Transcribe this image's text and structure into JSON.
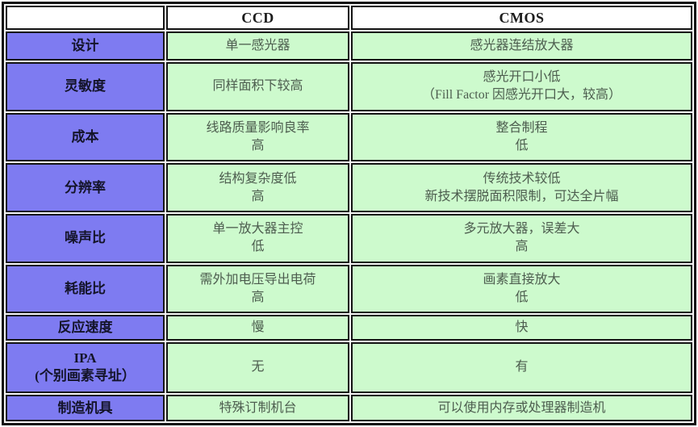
{
  "table": {
    "title_hidden": "",
    "columns": {
      "corner": "",
      "ccd": "CCD",
      "cmos": "CMOS"
    },
    "rows": [
      {
        "label": "设计",
        "ccd": "单一感光器",
        "cmos": "感光器连结放大器"
      },
      {
        "label": "灵敏度",
        "ccd": "同样面积下较高",
        "cmos": "感光开口小低\n（Fill Factor 因感光开口大，较高）"
      },
      {
        "label": "成本",
        "ccd": "线路质量影响良率\n高",
        "cmos": "整合制程\n低"
      },
      {
        "label": "分辨率",
        "ccd": "结构复杂度低\n高",
        "cmos": "传统技术较低\n新技术摆脱面积限制，可达全片幅"
      },
      {
        "label": "噪声比",
        "ccd": "单一放大器主控\n低",
        "cmos": "多元放大器，误差大\n高"
      },
      {
        "label": "耗能比",
        "ccd": "需外加电压导出电荷\n高",
        "cmos": "画素直接放大\n低"
      },
      {
        "label": "反应速度",
        "ccd": "慢",
        "cmos": "快"
      },
      {
        "label": "IPA\n(个别画素寻址）",
        "ccd": "无",
        "cmos": "有"
      },
      {
        "label": "制造机具",
        "ccd": "特殊订制机台",
        "cmos": "可以使用内存或处理器制造机"
      }
    ],
    "colors": {
      "row_label_bg": "#7e7bf1",
      "value_bg": "#cdfacd",
      "header_bg": "#ffffff",
      "border": "#161616",
      "value_text": "#4d5d4f",
      "label_text": "#14142a"
    }
  }
}
